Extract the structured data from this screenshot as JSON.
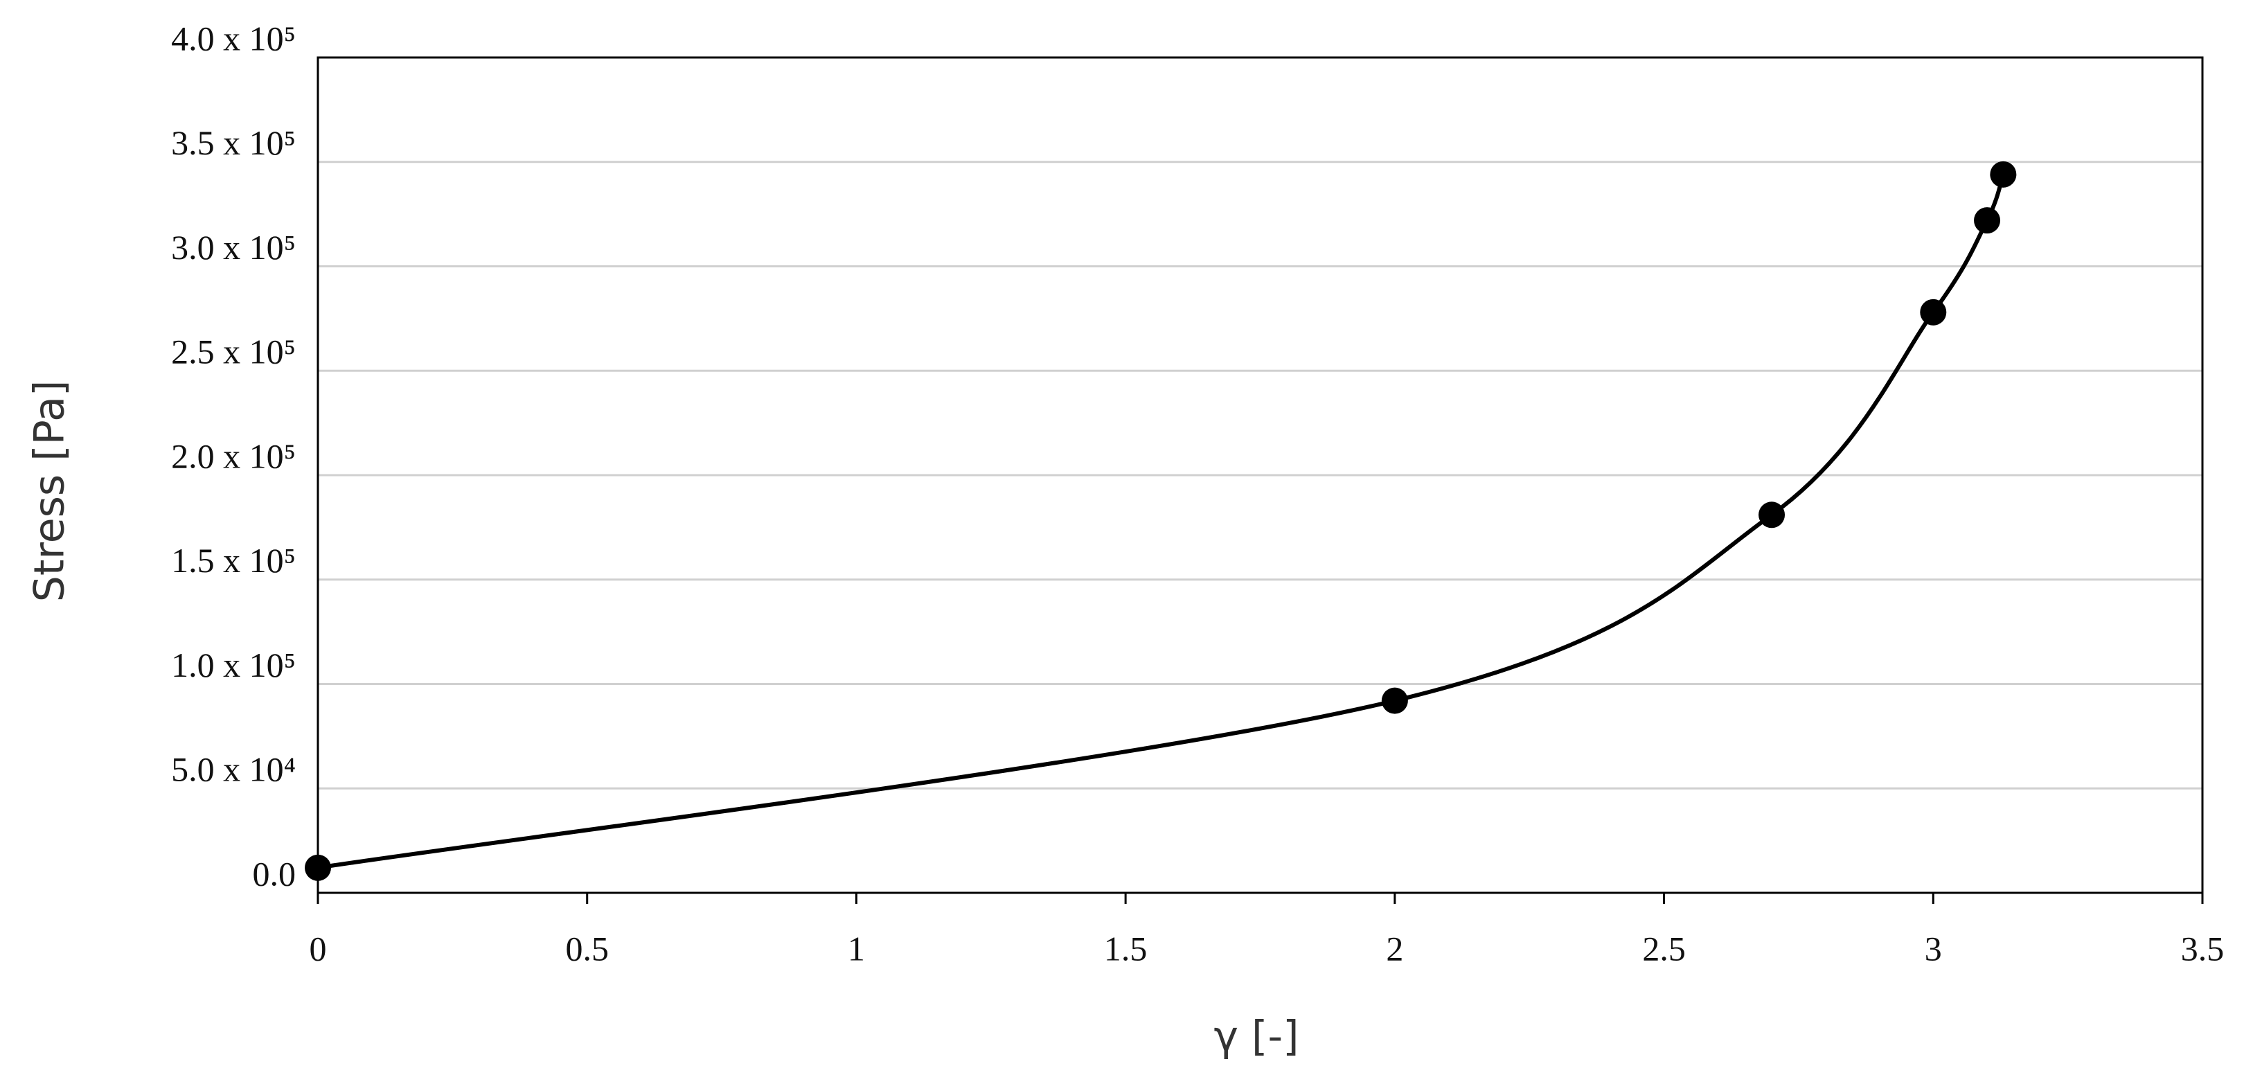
{
  "chart_data": {
    "type": "scatter",
    "x_label": "γ [-]",
    "y_label": "Stress [Pa]",
    "x": [
      0,
      2,
      2.7,
      3,
      3.1,
      3.13
    ],
    "values": [
      12000,
      92000,
      181000,
      278000,
      322000,
      344000
    ],
    "color": "#000000",
    "xlim": [
      0,
      3.5
    ],
    "xticks": [
      0,
      0.5,
      1,
      1.5,
      2,
      2.5,
      3,
      3.5
    ],
    "ylim": [
      0,
      400000
    ],
    "yticks": [
      {
        "value": 0,
        "label": "0.0"
      },
      {
        "value": 50000,
        "label": "5.0 x 10⁴"
      },
      {
        "value": 100000,
        "label": "1.0 x 10⁵"
      },
      {
        "value": 150000,
        "label": "1.5 x 10⁵"
      },
      {
        "value": 200000,
        "label": "2.0 x 10⁵"
      },
      {
        "value": 250000,
        "label": "2.5 x 10⁵"
      },
      {
        "value": 300000,
        "label": "3.0 x 10⁵"
      },
      {
        "value": 350000,
        "label": "3.5 x 10⁵"
      },
      {
        "value": 400000,
        "label": "4.0 x 10⁵"
      }
    ],
    "grid": true
  }
}
